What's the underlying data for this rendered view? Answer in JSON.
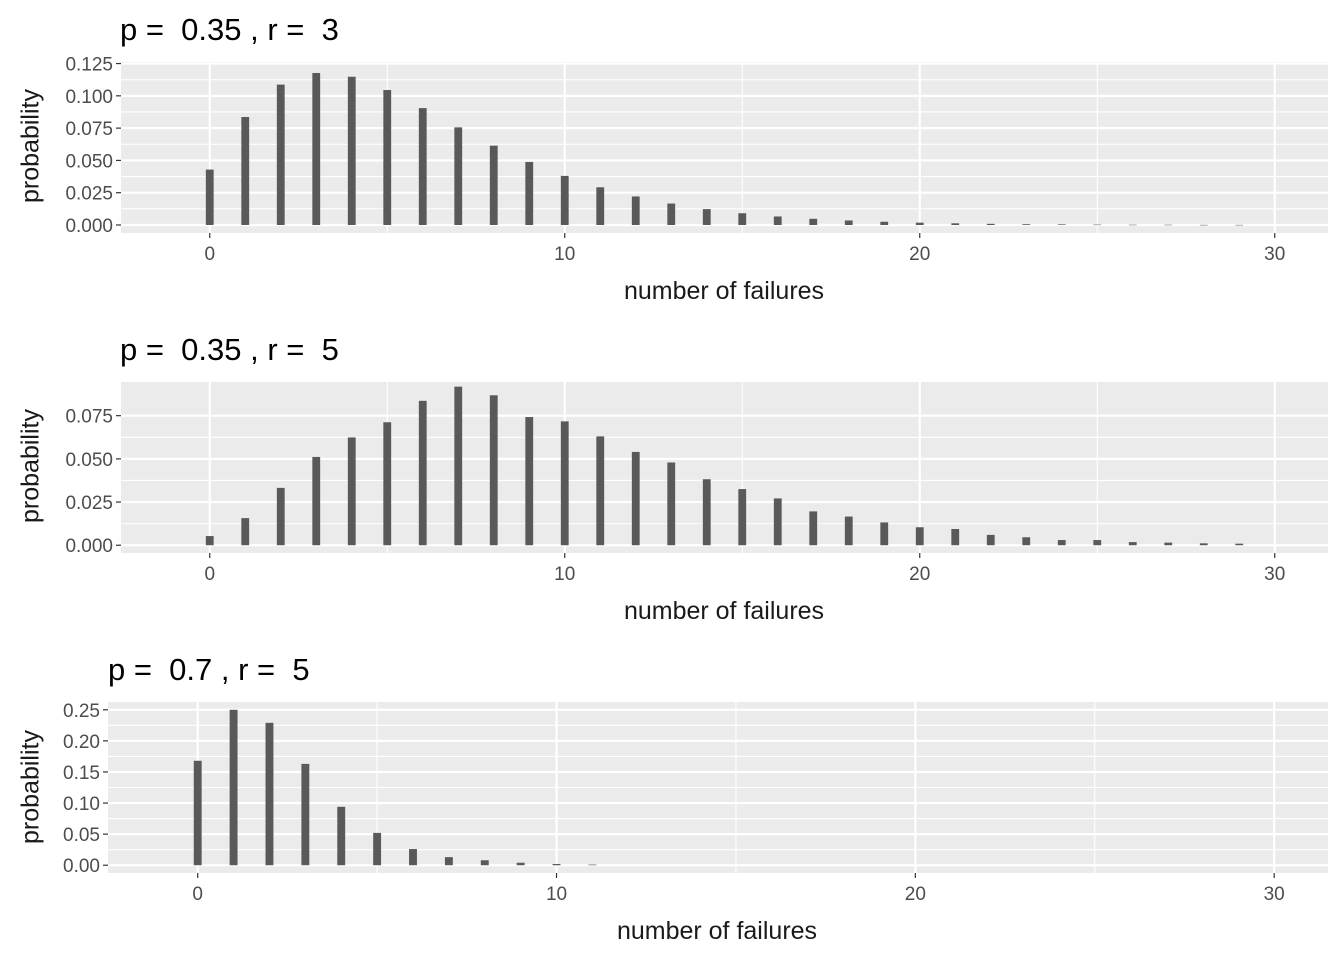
{
  "chart_data": [
    {
      "type": "bar",
      "title": "p =  0.35 , r =  3",
      "xlabel": "number of failures",
      "ylabel": "probability",
      "xlim": [
        -2.5,
        31.5
      ],
      "ylim": [
        -0.0062,
        0.1262
      ],
      "x_ticks": [
        0,
        10,
        20,
        30
      ],
      "y_ticks": [
        0.0,
        0.025,
        0.05,
        0.075,
        0.1,
        0.125
      ],
      "y_tick_labels": [
        "0.000",
        "0.025",
        "0.050",
        "0.075",
        "0.100",
        "0.125"
      ],
      "grid": true,
      "x": [
        0,
        1,
        2,
        3,
        4,
        5,
        6,
        7,
        8,
        9,
        10,
        11,
        12,
        13,
        14,
        15,
        16,
        17,
        18,
        19,
        20,
        21,
        22,
        23,
        24,
        25,
        26,
        27,
        28,
        29
      ],
      "values": [
        0.0429,
        0.0836,
        0.1087,
        0.1177,
        0.1148,
        0.1045,
        0.0905,
        0.0756,
        0.0614,
        0.0488,
        0.038,
        0.0292,
        0.0221,
        0.0166,
        0.0123,
        0.0091,
        0.0066,
        0.0048,
        0.0035,
        0.0025,
        0.0018,
        0.0013,
        0.0009,
        0.0006,
        0.0005,
        0.0003,
        0.0002,
        0.0002,
        0.0001,
        0.0001
      ]
    },
    {
      "type": "bar",
      "title": "p =  0.35 , r =  5",
      "xlabel": "number of failures",
      "ylabel": "probability",
      "xlim": [
        -2.5,
        31.5
      ],
      "ylim": [
        -0.0045,
        0.0945
      ],
      "x_ticks": [
        0,
        10,
        20,
        30
      ],
      "y_ticks": [
        0.0,
        0.025,
        0.05,
        0.075
      ],
      "y_tick_labels": [
        "0.000",
        "0.025",
        "0.050",
        "0.075"
      ],
      "grid": true,
      "x": [
        0,
        1,
        2,
        3,
        4,
        5,
        6,
        7,
        8,
        9,
        10,
        11,
        12,
        13,
        14,
        15,
        16,
        17,
        18,
        19,
        20,
        21,
        22,
        23,
        24,
        25,
        26,
        27,
        28,
        29
      ],
      "values": [
        0.0053,
        0.0157,
        0.0332,
        0.0511,
        0.0624,
        0.0712,
        0.0836,
        0.0918,
        0.0868,
        0.0742,
        0.0717,
        0.063,
        0.054,
        0.0479,
        0.0382,
        0.0325,
        0.0271,
        0.0196,
        0.0166,
        0.0132,
        0.0104,
        0.0094,
        0.006,
        0.0046,
        0.003,
        0.003,
        0.0018,
        0.0015,
        0.0011,
        0.0009
      ]
    },
    {
      "type": "bar",
      "title": "p =  0.7 , r =  5",
      "xlabel": "number of failures",
      "ylabel": "probability",
      "xlim": [
        -2.5,
        31.5
      ],
      "ylim": [
        -0.0125,
        0.2625
      ],
      "x_ticks": [
        0,
        10,
        20,
        30
      ],
      "y_ticks": [
        0.0,
        0.05,
        0.1,
        0.15,
        0.2,
        0.25
      ],
      "y_tick_labels": [
        "0.00",
        "0.05",
        "0.10",
        "0.15",
        "0.20",
        "0.25"
      ],
      "grid": true,
      "x": [
        0,
        1,
        2,
        3,
        4,
        5,
        6,
        7,
        8,
        9,
        10,
        11
      ],
      "values": [
        0.168,
        0.25,
        0.229,
        0.163,
        0.094,
        0.052,
        0.026,
        0.013,
        0.008,
        0.004,
        0.002,
        0.001
      ]
    }
  ]
}
